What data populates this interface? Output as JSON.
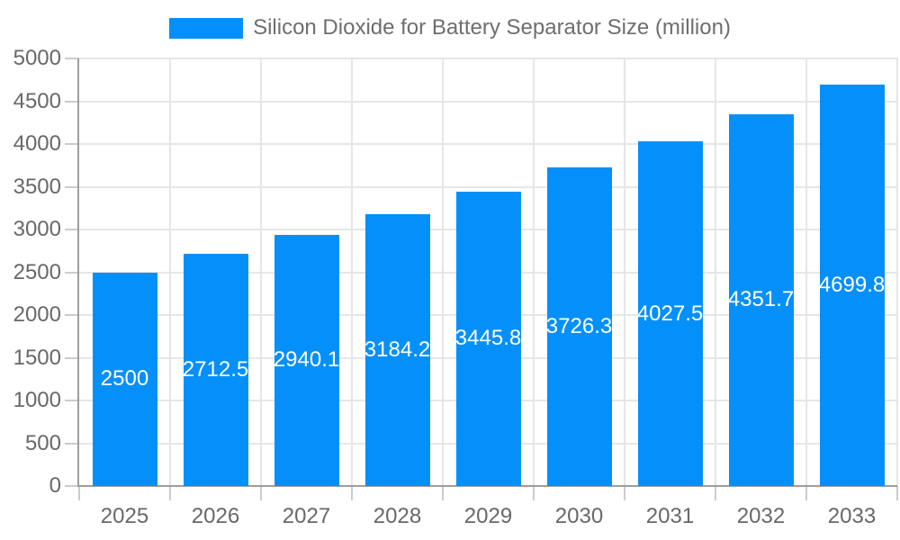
{
  "legend": {
    "label": "Silicon Dioxide for Battery Separator Size (million)",
    "swatch_color": "#0590f9"
  },
  "chart_data": {
    "type": "bar",
    "title": "Silicon Dioxide for Battery Separator Size (million)",
    "categories": [
      "2025",
      "2026",
      "2027",
      "2028",
      "2029",
      "2030",
      "2031",
      "2032",
      "2033"
    ],
    "values": [
      2500,
      2712.5,
      2940.1,
      3184.2,
      3445.8,
      3726.3,
      4027.5,
      4351.7,
      4699.8
    ],
    "value_labels": [
      "2500",
      "2712.5",
      "2940.1",
      "3184.2",
      "3445.8",
      "3726.3",
      "4027.5",
      "4351.7",
      "4699.8"
    ],
    "xlabel": "",
    "ylabel": "",
    "ylim": [
      0,
      5000
    ],
    "ytick_step": 500,
    "ytick_labels": [
      "0",
      "500",
      "1000",
      "1500",
      "2000",
      "2500",
      "3000",
      "3500",
      "4000",
      "4500",
      "5000"
    ],
    "grid": true,
    "legend_position": "top",
    "colors": {
      "bar": "#0590f9",
      "bar_label": "#ffffff",
      "grid_line": "#e6e6e6",
      "axis_line": "#9e9e9e",
      "tick_mark": "#cccccc",
      "tick_text": "#686868",
      "legend_text": "#6e6e6e",
      "background": "#ffffff"
    }
  }
}
